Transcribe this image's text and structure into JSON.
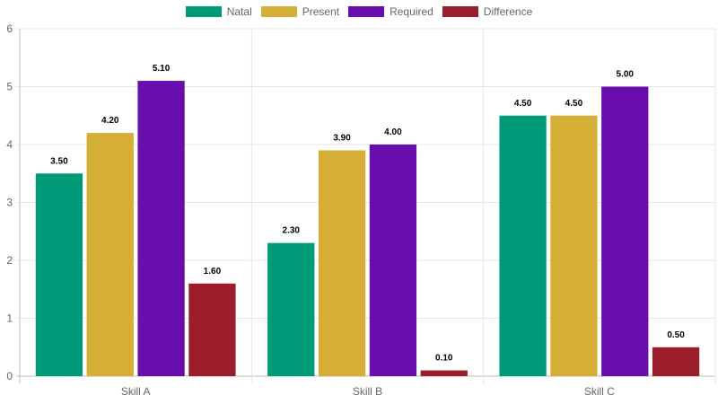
{
  "chart_data": {
    "type": "bar",
    "categories": [
      "Skill A",
      "Skill B",
      "Skill C"
    ],
    "series": [
      {
        "name": "Natal",
        "color": "#009a79",
        "values": [
          3.5,
          2.3,
          4.5
        ],
        "labels": [
          "3.50",
          "2.30",
          "4.50"
        ]
      },
      {
        "name": "Present",
        "color": "#d4ae35",
        "values": [
          4.2,
          3.9,
          4.5
        ],
        "labels": [
          "4.20",
          "3.90",
          "4.50"
        ]
      },
      {
        "name": "Required",
        "color": "#6a0dad",
        "values": [
          5.1,
          4.0,
          5.0
        ],
        "labels": [
          "5.10",
          "4.00",
          "5.00"
        ]
      },
      {
        "name": "Difference",
        "color": "#9b1d2b",
        "values": [
          1.6,
          0.1,
          0.5
        ],
        "labels": [
          "1.60",
          "0.10",
          "0.50"
        ]
      }
    ],
    "ylim": [
      0,
      6
    ],
    "yticks": [
      "0",
      "1",
      "2",
      "3",
      "4",
      "5",
      "6"
    ],
    "grid": true,
    "legend_position": "top-center"
  }
}
